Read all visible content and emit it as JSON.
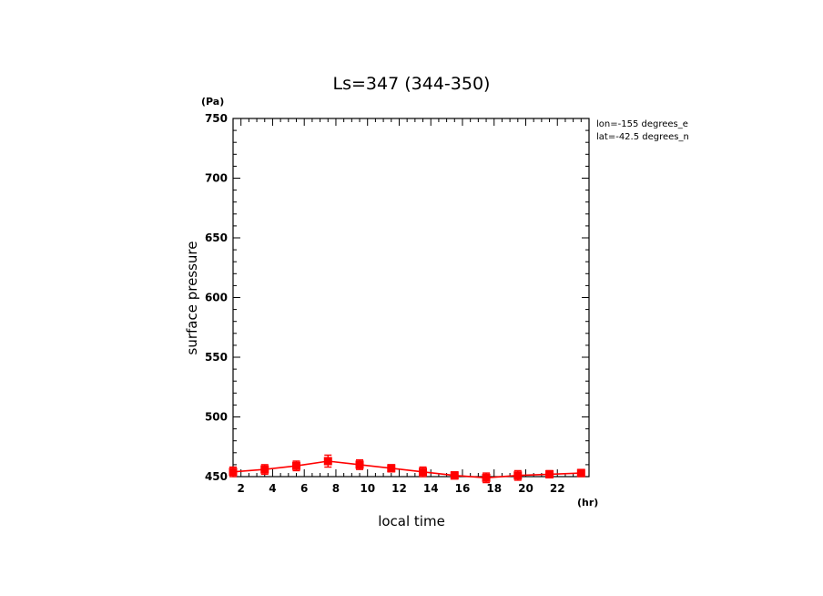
{
  "chart_data": {
    "type": "line",
    "title": "Ls=347 (344-350)",
    "xlabel": "local time",
    "ylabel": "surface pressure",
    "x_unit": "(hr)",
    "y_unit": "(Pa)",
    "annotations": [
      "lon=-155 degrees_e",
      "lat=-42.5 degrees_n"
    ],
    "xlim": [
      1.5,
      24
    ],
    "ylim": [
      450,
      750
    ],
    "x_ticks": [
      2,
      4,
      6,
      8,
      10,
      12,
      14,
      16,
      18,
      20,
      22
    ],
    "y_ticks": [
      450,
      500,
      550,
      600,
      650,
      700,
      750
    ],
    "grid": false,
    "colors": {
      "series": "#ff0000",
      "axes": "#000000"
    },
    "series": [
      {
        "x": [
          1.5,
          3.5,
          5.5,
          7.5,
          9.5,
          11.5,
          13.5,
          15.5,
          17.5,
          19.5,
          21.5,
          23.5
        ],
        "values": [
          454,
          456,
          459,
          463,
          460,
          457,
          454,
          451,
          449,
          451,
          452,
          453
        ],
        "errors": [
          4,
          4,
          4,
          5,
          4,
          3,
          4,
          3,
          4,
          4,
          3,
          3
        ]
      }
    ]
  }
}
